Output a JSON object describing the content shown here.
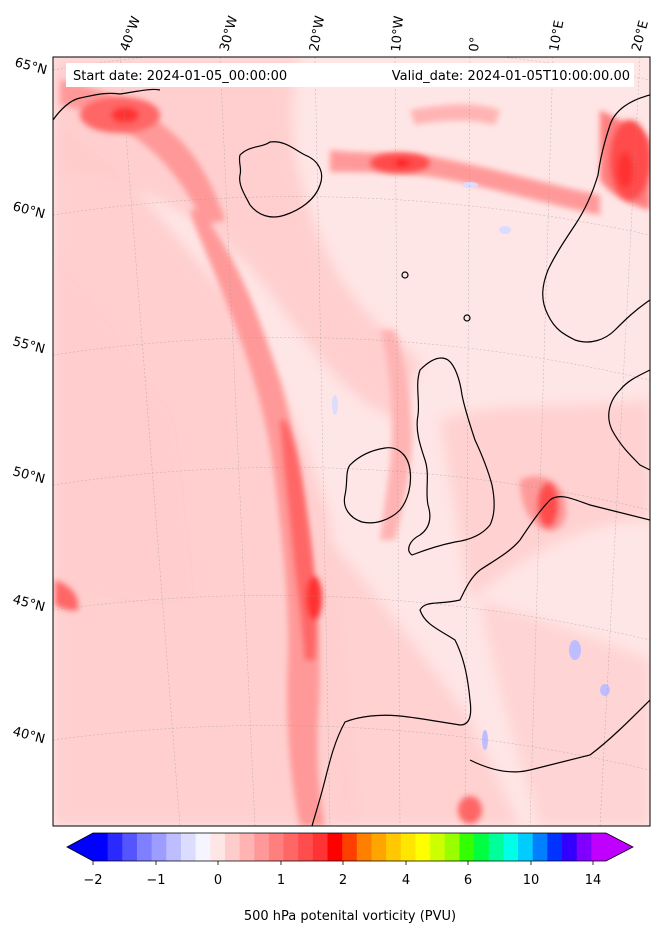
{
  "header": {
    "start_date": "Start date: 2024-01-05_00:00:00",
    "valid_date": "Valid_date: 2024-01-05T10:00:00.00"
  },
  "map": {
    "lon_labels": [
      "40°W",
      "30°W",
      "20°W",
      "10°W",
      "0°",
      "10°E",
      "20°E"
    ],
    "lat_labels": [
      "65°N",
      "60°N",
      "55°N",
      "50°N",
      "45°N",
      "40°N"
    ],
    "land_color": "#ffffff",
    "background_field_color": "#ffe6e6"
  },
  "colorbar": {
    "title": "500 hPa potenital vorticity (PVU)",
    "tick_labels": [
      "−2",
      "−1",
      "0",
      "1",
      "2",
      "4",
      "6",
      "10",
      "14"
    ],
    "colors": [
      "#0000ff",
      "#2a2aff",
      "#5555ff",
      "#7f7fff",
      "#9d9dff",
      "#bdbdff",
      "#dcdcff",
      "#f5f5ff",
      "#ffe6e6",
      "#ffcccc",
      "#ffb3b3",
      "#ff9999",
      "#ff7f7f",
      "#ff6666",
      "#ff4c4c",
      "#ff3333",
      "#ff0000",
      "#ff3f00",
      "#ff7f00",
      "#ffa500",
      "#ffc800",
      "#ffe600",
      "#ffff00",
      "#ccff00",
      "#99ff00",
      "#33ff00",
      "#00ff40",
      "#00ff99",
      "#00ffe6",
      "#00ccff",
      "#0080ff",
      "#0033ff",
      "#3300ff",
      "#8000ff",
      "#bf00ff"
    ],
    "extend_low_color": "#0000ff",
    "extend_high_color": "#bf00ff"
  }
}
